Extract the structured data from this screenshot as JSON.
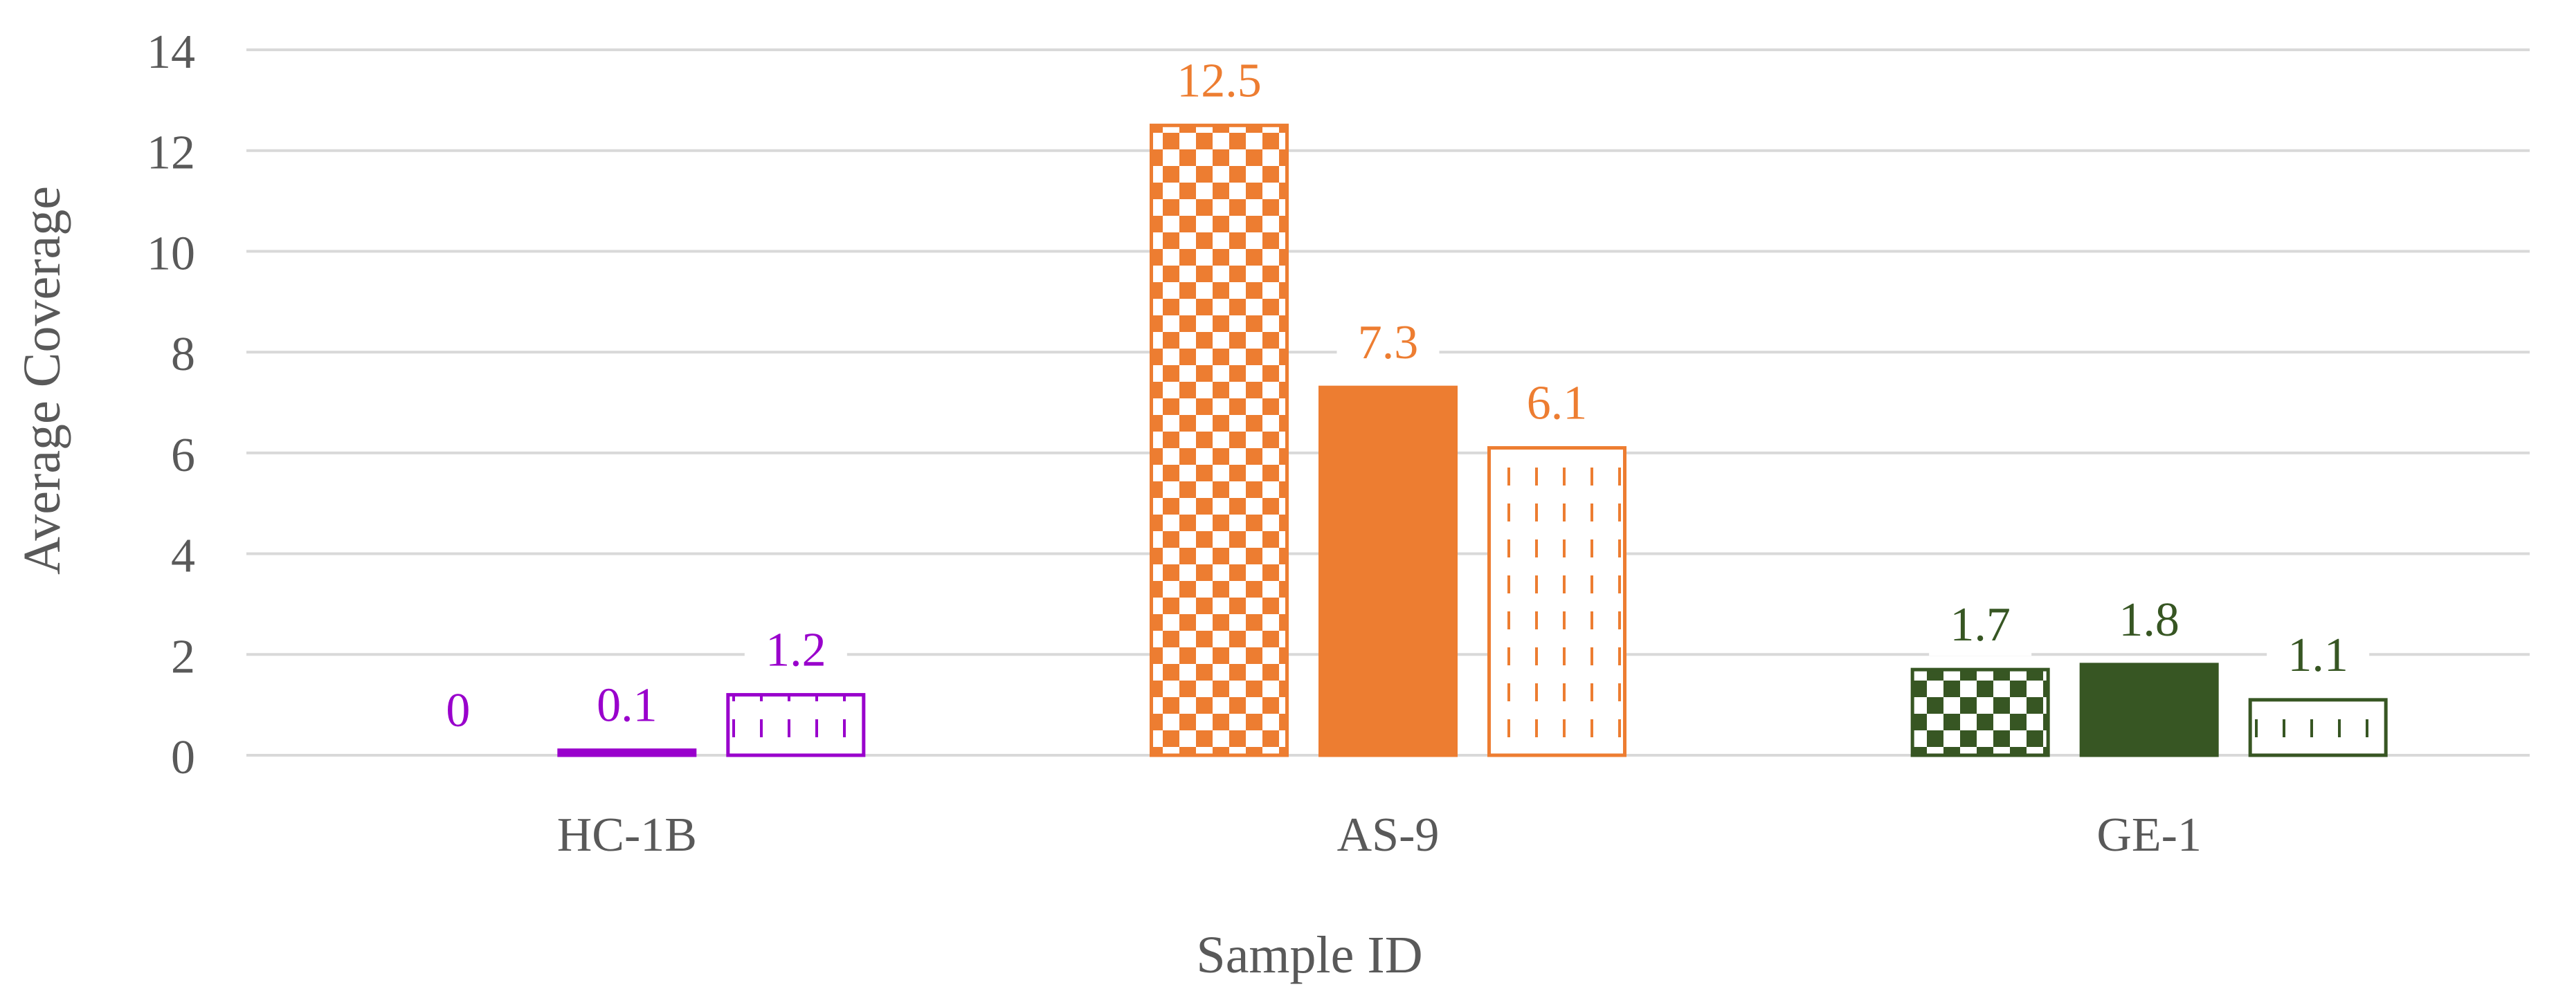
{
  "chart_data": {
    "type": "bar",
    "categories": [
      "HC-1B",
      "AS-9",
      "GE-1"
    ],
    "groups": [
      {
        "category": "HC-1B",
        "color": "#9900cc",
        "values": [
          0,
          0.1,
          1.2
        ],
        "styles": [
          "checker",
          "solid",
          "dashed-vertical"
        ]
      },
      {
        "category": "AS-9",
        "color": "#ed7d31",
        "values": [
          12.5,
          7.3,
          6.1
        ],
        "styles": [
          "checker",
          "solid",
          "dashed-vertical"
        ]
      },
      {
        "category": "GE-1",
        "color": "#375623",
        "values": [
          1.7,
          1.8,
          1.1
        ],
        "styles": [
          "checker",
          "solid",
          "dashed-vertical"
        ]
      }
    ],
    "data_labels": [
      [
        "0",
        "0.1",
        "1.2"
      ],
      [
        "12.5",
        "7.3",
        "6.1"
      ],
      [
        "1.7",
        "1.8",
        "1.1"
      ]
    ],
    "xlabel": "Sample ID",
    "ylabel": "Average Coverage",
    "ylim": [
      0,
      14
    ],
    "yticks": [
      0,
      2,
      4,
      6,
      8,
      10,
      12,
      14
    ],
    "grid": true,
    "legend": "none",
    "colors": {
      "grid": "#d9d9d9",
      "axis_text": "#595959"
    }
  }
}
